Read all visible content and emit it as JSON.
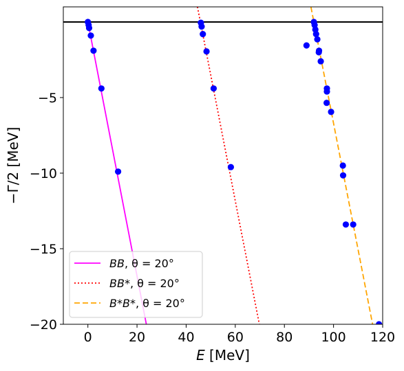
{
  "chart_data": {
    "type": "scatter",
    "xlabel": "E [MeV]",
    "ylabel": "−Γ/2 [MeV]",
    "xlim": [
      -10,
      120
    ],
    "ylim": [
      -20,
      1
    ],
    "xticks": [
      "0",
      "20",
      "40",
      "60",
      "80",
      "100",
      "120"
    ],
    "xtick_values": [
      0,
      20,
      40,
      60,
      80,
      100,
      120
    ],
    "yticks": [
      "−20",
      "−15",
      "−10",
      "−5"
    ],
    "ytick_values": [
      -20,
      -15,
      -10,
      -5
    ],
    "grid": false,
    "legend_position": "lower-left",
    "hline_y": 0,
    "points_color": "#0000ff",
    "points": [
      [
        0,
        0
      ],
      [
        0.3,
        -0.2
      ],
      [
        0.5,
        -0.4
      ],
      [
        1.2,
        -0.9
      ],
      [
        2.3,
        -1.9
      ],
      [
        5.5,
        -4.4
      ],
      [
        12.3,
        -9.9
      ],
      [
        46,
        -0.05
      ],
      [
        46.3,
        -0.3
      ],
      [
        46.8,
        -0.8
      ],
      [
        48.3,
        -1.95
      ],
      [
        51.2,
        -4.4
      ],
      [
        58.2,
        -9.6
      ],
      [
        89,
        -1.55
      ],
      [
        92,
        0
      ],
      [
        92.3,
        -0.2
      ],
      [
        92.6,
        -0.5
      ],
      [
        92.9,
        -0.8
      ],
      [
        93.4,
        -1.15
      ],
      [
        94,
        -2.0
      ],
      [
        94.1,
        -1.9
      ],
      [
        94.8,
        -2.6
      ],
      [
        97.3,
        -4.4
      ],
      [
        97.3,
        -4.6
      ],
      [
        97.2,
        -5.35
      ],
      [
        99,
        -5.95
      ],
      [
        103.8,
        -9.5
      ],
      [
        103.9,
        -10.15
      ],
      [
        105,
        -13.4
      ],
      [
        108,
        -13.4
      ],
      [
        118.5,
        -20
      ]
    ],
    "series": [
      {
        "name": "BB, θ = 20°",
        "slope_line": {
          "x0": 0,
          "y0": 0,
          "x1": 23.8,
          "y1": -20
        },
        "color": "#ff00ff",
        "style": "solid"
      },
      {
        "name": "BB*, θ = 20°",
        "slope_line": {
          "x0": 44.6,
          "y0": 1,
          "x1": 69.8,
          "y1": -20
        },
        "color": "#ff0000",
        "style": "dotted"
      },
      {
        "name": "B*B*, θ = 20°",
        "slope_line": {
          "x0": 90.8,
          "y0": 1,
          "x1": 115.9,
          "y1": -20
        },
        "color": "#ffa500",
        "style": "dashed"
      }
    ],
    "legend": [
      {
        "italic": "BB",
        "rest": ", θ = 20°"
      },
      {
        "italic": "BB*",
        "rest": ", θ = 20°"
      },
      {
        "italic": "B*B*",
        "rest": ", θ = 20°"
      }
    ]
  }
}
